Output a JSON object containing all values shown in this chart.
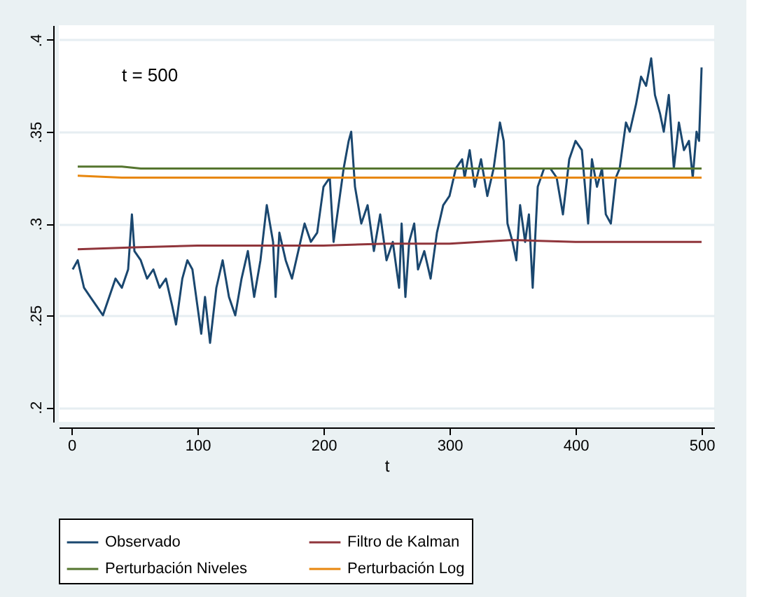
{
  "chart_data": {
    "type": "line",
    "xlabel": "t",
    "annotations": [
      "t = 500"
    ],
    "xlim": [
      -10,
      510
    ],
    "xticks": [
      0,
      100,
      200,
      300,
      400,
      500
    ],
    "ylim": [
      0.192,
      0.408
    ],
    "yticks": [
      {
        "value": 0.2,
        "label": ".2"
      },
      {
        "value": 0.25,
        "label": ".25"
      },
      {
        "value": 0.3,
        "label": ".3"
      },
      {
        "value": 0.35,
        "label": ".35"
      },
      {
        "value": 0.4,
        "label": ".4"
      }
    ],
    "grid": "y",
    "legend": "bottom",
    "line_style": "solid",
    "marker": "none",
    "series": [
      {
        "name": "Observado",
        "color": "#1a476f",
        "x": [
          1,
          5,
          10,
          15,
          20,
          25,
          30,
          35,
          40,
          45,
          48,
          50,
          55,
          60,
          65,
          70,
          75,
          80,
          83,
          88,
          92,
          96,
          100,
          103,
          106,
          110,
          115,
          120,
          125,
          130,
          135,
          140,
          145,
          150,
          155,
          160,
          162,
          165,
          170,
          175,
          180,
          185,
          190,
          195,
          200,
          205,
          208,
          212,
          216,
          220,
          222,
          225,
          230,
          235,
          240,
          245,
          250,
          255,
          260,
          262,
          265,
          268,
          272,
          275,
          280,
          285,
          290,
          295,
          300,
          305,
          310,
          312,
          316,
          320,
          325,
          330,
          335,
          340,
          343,
          346,
          350,
          353,
          356,
          360,
          363,
          366,
          370,
          375,
          380,
          385,
          390,
          395,
          400,
          405,
          410,
          413,
          417,
          421,
          424,
          428,
          432,
          435,
          440,
          443,
          448,
          452,
          456,
          460,
          463,
          467,
          470,
          474,
          478,
          482,
          486,
          490,
          493,
          496,
          498,
          500
        ],
        "values": [
          0.275,
          0.28,
          0.265,
          0.26,
          0.255,
          0.25,
          0.26,
          0.27,
          0.265,
          0.275,
          0.305,
          0.285,
          0.28,
          0.27,
          0.275,
          0.265,
          0.27,
          0.255,
          0.245,
          0.27,
          0.28,
          0.275,
          0.255,
          0.24,
          0.26,
          0.235,
          0.265,
          0.28,
          0.26,
          0.25,
          0.27,
          0.285,
          0.26,
          0.28,
          0.31,
          0.29,
          0.26,
          0.295,
          0.28,
          0.27,
          0.285,
          0.3,
          0.29,
          0.295,
          0.32,
          0.325,
          0.29,
          0.31,
          0.33,
          0.345,
          0.35,
          0.32,
          0.3,
          0.31,
          0.285,
          0.305,
          0.28,
          0.29,
          0.265,
          0.3,
          0.26,
          0.29,
          0.3,
          0.275,
          0.285,
          0.27,
          0.295,
          0.31,
          0.315,
          0.33,
          0.335,
          0.325,
          0.34,
          0.32,
          0.335,
          0.315,
          0.33,
          0.355,
          0.345,
          0.3,
          0.29,
          0.28,
          0.31,
          0.29,
          0.305,
          0.265,
          0.32,
          0.33,
          0.33,
          0.325,
          0.305,
          0.335,
          0.345,
          0.34,
          0.3,
          0.335,
          0.32,
          0.33,
          0.305,
          0.3,
          0.325,
          0.33,
          0.355,
          0.35,
          0.365,
          0.38,
          0.375,
          0.39,
          0.37,
          0.36,
          0.35,
          0.37,
          0.33,
          0.355,
          0.34,
          0.345,
          0.325,
          0.35,
          0.345,
          0.385
        ]
      },
      {
        "name": "Filtro de Kalman",
        "color": "#90353b",
        "x": [
          5,
          50,
          100,
          150,
          200,
          250,
          300,
          350,
          400,
          450,
          500
        ],
        "values": [
          0.286,
          0.287,
          0.288,
          0.288,
          0.288,
          0.289,
          0.289,
          0.291,
          0.29,
          0.29,
          0.29
        ]
      },
      {
        "name": "Perturbación Niveles",
        "color": "#55752f",
        "x": [
          5,
          40,
          55,
          100,
          200,
          300,
          400,
          500
        ],
        "values": [
          0.331,
          0.331,
          0.33,
          0.33,
          0.33,
          0.33,
          0.33,
          0.33
        ]
      },
      {
        "name": "Perturbación Log",
        "color": "#e8870e",
        "x": [
          5,
          40,
          100,
          200,
          300,
          400,
          500
        ],
        "values": [
          0.326,
          0.325,
          0.325,
          0.325,
          0.325,
          0.325,
          0.325
        ]
      }
    ]
  }
}
